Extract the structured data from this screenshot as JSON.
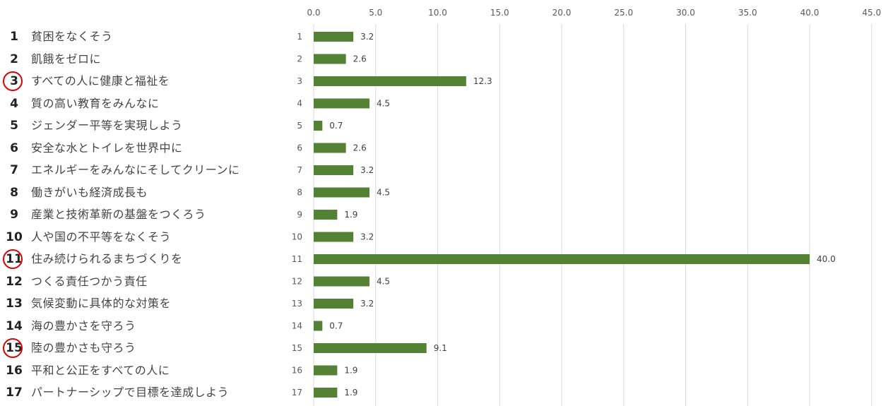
{
  "goals": [
    {
      "number": "1",
      "label": "貧困をなくそう",
      "highlighted": false
    },
    {
      "number": "2",
      "label": "飢餓をゼロに",
      "highlighted": false
    },
    {
      "number": "3",
      "label": "すべての人に健康と福祉を",
      "highlighted": true
    },
    {
      "number": "4",
      "label": "質の高い教育をみんなに",
      "highlighted": false
    },
    {
      "number": "5",
      "label": "ジェンダー平等を実現しよう",
      "highlighted": false
    },
    {
      "number": "6",
      "label": "安全な水とトイレを世界中に",
      "highlighted": false
    },
    {
      "number": "7",
      "label": "エネルギーをみんなにそしてクリーンに",
      "highlighted": false
    },
    {
      "number": "8",
      "label": "働きがいも経済成長も",
      "highlighted": false
    },
    {
      "number": "9",
      "label": "産業と技術革新の基盤をつくろう",
      "highlighted": false
    },
    {
      "number": "10",
      "label": "人や国の不平等をなくそう",
      "highlighted": false
    },
    {
      "number": "11",
      "label": "住み続けられるまちづくりを",
      "highlighted": true
    },
    {
      "number": "12",
      "label": "つくる責任つかう責任",
      "highlighted": false
    },
    {
      "number": "13",
      "label": "気候変動に具体的な対策を",
      "highlighted": false
    },
    {
      "number": "14",
      "label": "海の豊かさを守ろう",
      "highlighted": false
    },
    {
      "number": "15",
      "label": "陸の豊かさも守ろう",
      "highlighted": true
    },
    {
      "number": "16",
      "label": "平和と公正をすべての人に",
      "highlighted": false
    },
    {
      "number": "17",
      "label": "パートナーシップで目標を達成しよう",
      "highlighted": false
    }
  ],
  "chart_data": {
    "type": "bar",
    "orientation": "horizontal",
    "categories": [
      "1",
      "2",
      "3",
      "4",
      "5",
      "6",
      "7",
      "8",
      "9",
      "10",
      "11",
      "12",
      "13",
      "14",
      "15",
      "16",
      "17"
    ],
    "values": [
      3.2,
      2.6,
      12.3,
      4.5,
      0.7,
      2.6,
      3.2,
      4.5,
      1.9,
      3.2,
      40.0,
      4.5,
      3.2,
      0.7,
      9.1,
      1.9,
      1.9
    ],
    "value_labels": [
      "3.2",
      "2.6",
      "12.3",
      "4.5",
      "0.7",
      "2.6",
      "3.2",
      "4.5",
      "1.9",
      "3.2",
      "40.0",
      "4.5",
      "3.2",
      "0.7",
      "9.1",
      "1.9",
      "1.9"
    ],
    "xlim": [
      0,
      45
    ],
    "xticks": [
      "0.0",
      "5.0",
      "10.0",
      "15.0",
      "20.0",
      "25.0",
      "30.0",
      "35.0",
      "40.0",
      "45.0"
    ],
    "x_axis_position": "top",
    "grid": true,
    "bar_color": "#548235",
    "grid_color": "#d9d9d9",
    "highlight_color": "#e00000"
  }
}
